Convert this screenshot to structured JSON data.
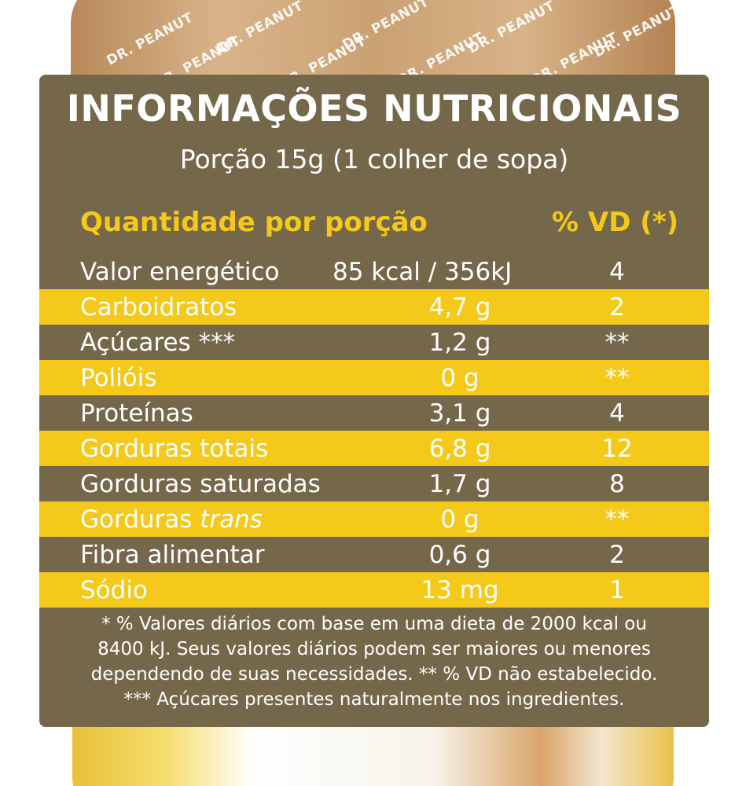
{
  "brand": {
    "lid_text": "DR. PEANUT"
  },
  "label": {
    "title": "INFORMAÇÕES NUTRICIONAIS",
    "serving": "Porção 15g (1 colher de sopa)",
    "header_quantity": "Quantidade por porção",
    "header_vd": "% VD (*)",
    "rows": [
      {
        "name": "Valor energético",
        "name_suffix": "",
        "amount": "85 kcal / 356kJ",
        "vd": "4"
      },
      {
        "name": "Carboidratos",
        "name_suffix": "",
        "amount": "4,7 g",
        "vd": "2"
      },
      {
        "name": "Açúcares ***",
        "name_suffix": "",
        "amount": "1,2 g",
        "vd": "**"
      },
      {
        "name": "Polióis",
        "name_suffix": "",
        "amount": "0 g",
        "vd": "**"
      },
      {
        "name": "Proteínas",
        "name_suffix": "",
        "amount": "3,1 g",
        "vd": "4"
      },
      {
        "name": "Gorduras totais",
        "name_suffix": "",
        "amount": "6,8 g",
        "vd": "12"
      },
      {
        "name": "Gorduras saturadas",
        "name_suffix": "",
        "amount": "1,7 g",
        "vd": "8"
      },
      {
        "name": "Gorduras ",
        "name_suffix": "trans",
        "amount": "0 g",
        "vd": "**"
      },
      {
        "name": "Fibra alimentar",
        "name_suffix": "",
        "amount": "0,6 g",
        "vd": "2"
      },
      {
        "name": "Sódio",
        "name_suffix": "",
        "amount": "13 mg",
        "vd": "1"
      }
    ],
    "footnote_lines": [
      "* % Valores diários com base em uma dieta de 2000 kcal ou",
      "8400 kJ. Seus valores diários podem ser maiores ou menores",
      "dependendo de suas necessidades. ** % VD não estabelecido.",
      "*** Açúcares presentes naturalmente nos ingredientes."
    ]
  },
  "colors": {
    "panel_brown": "#75684a",
    "row_yellow": "#f4c91a",
    "text_white": "#ffffff"
  }
}
